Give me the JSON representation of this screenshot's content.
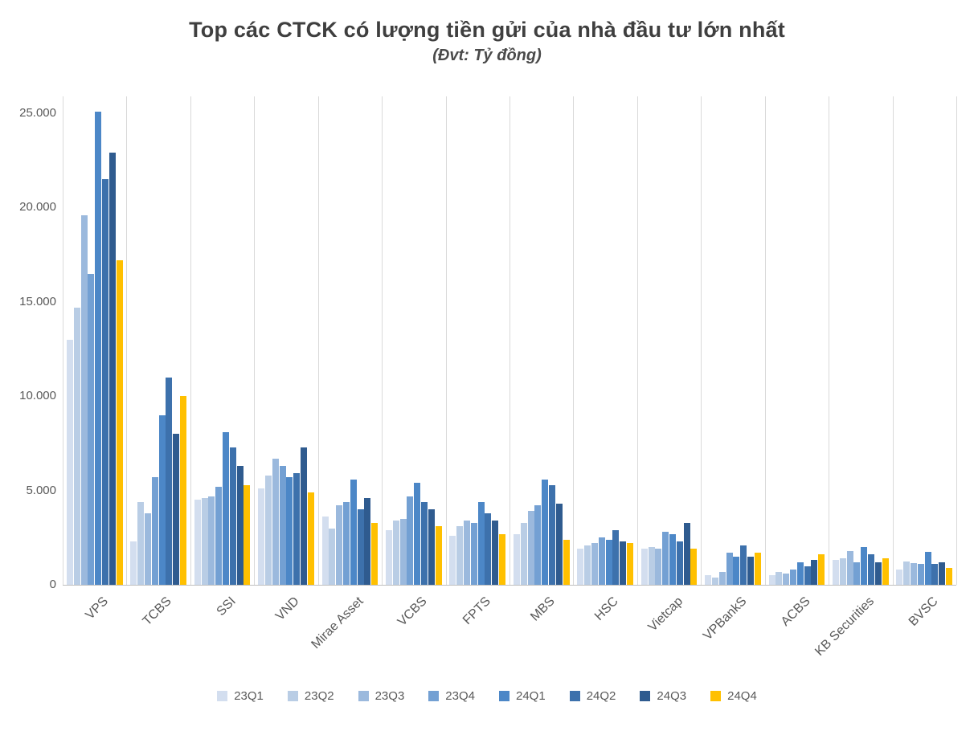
{
  "chart_data": {
    "type": "bar",
    "title": "Top các CTCK có lượng tiền gửi của nhà đầu tư lớn nhất",
    "subtitle": "(Đvt: Tỷ đồng)",
    "unit": "Tỷ đồng",
    "categories": [
      "VPS",
      "TCBS",
      "SSI",
      "VND",
      "Mirae Asset",
      "VCBS",
      "FPTS",
      "MBS",
      "HSC",
      "Vietcap",
      "VPBankS",
      "ACBS",
      "KB Securities",
      "BVSC"
    ],
    "series": [
      {
        "name": "23Q1",
        "color": "#D3DEEF",
        "values": [
          13000,
          2300,
          4500,
          5100,
          3600,
          2900,
          2600,
          2700,
          1900,
          1900,
          500,
          500,
          1300,
          800
        ]
      },
      {
        "name": "23Q2",
        "color": "#B9CDE5",
        "values": [
          14700,
          4400,
          4600,
          5800,
          3000,
          3400,
          3100,
          3300,
          2100,
          2000,
          400,
          700,
          1400,
          1250
        ]
      },
      {
        "name": "23Q3",
        "color": "#9BB9DD",
        "values": [
          19600,
          3800,
          4700,
          6700,
          4200,
          3500,
          3400,
          3900,
          2200,
          1900,
          700,
          600,
          1800,
          1150
        ]
      },
      {
        "name": "23Q4",
        "color": "#73A0D3",
        "values": [
          16500,
          5700,
          5200,
          6300,
          4400,
          4700,
          3300,
          4200,
          2500,
          2800,
          1700,
          800,
          1200,
          1100
        ]
      },
      {
        "name": "24Q1",
        "color": "#4C87C7",
        "values": [
          25100,
          9000,
          8100,
          5700,
          5600,
          5400,
          4400,
          5600,
          2400,
          2700,
          1500,
          1200,
          2000,
          1750
        ]
      },
      {
        "name": "24Q2",
        "color": "#3D71AC",
        "values": [
          21500,
          11000,
          7300,
          5900,
          4000,
          4400,
          3800,
          5300,
          2900,
          2300,
          2100,
          1000,
          1600,
          1100
        ]
      },
      {
        "name": "24Q3",
        "color": "#2F5B8F",
        "values": [
          22900,
          8000,
          6300,
          7300,
          4600,
          4000,
          3400,
          4300,
          2300,
          3300,
          1500,
          1300,
          1200,
          1200
        ]
      },
      {
        "name": "24Q4",
        "color": "#FFC000",
        "values": [
          17200,
          10000,
          5300,
          4900,
          3300,
          3100,
          2700,
          2400,
          2200,
          1900,
          1700,
          1600,
          1400,
          900
        ]
      }
    ],
    "ylim": [
      0,
      25000
    ],
    "ytick_step": 5000,
    "ytick_labels": [
      "0",
      "5.000",
      "10.000",
      "15.000",
      "20.000",
      "25.000"
    ],
    "grid": "vertical category separators only",
    "legend_position": "bottom",
    "colors": {
      "title_text": "#3f3f3f",
      "axis_text": "#595959",
      "gridline": "#d9d9d9",
      "axis_line": "#bfbfbf",
      "background": "#ffffff",
      "accent_highlight": "#FFC000"
    }
  }
}
